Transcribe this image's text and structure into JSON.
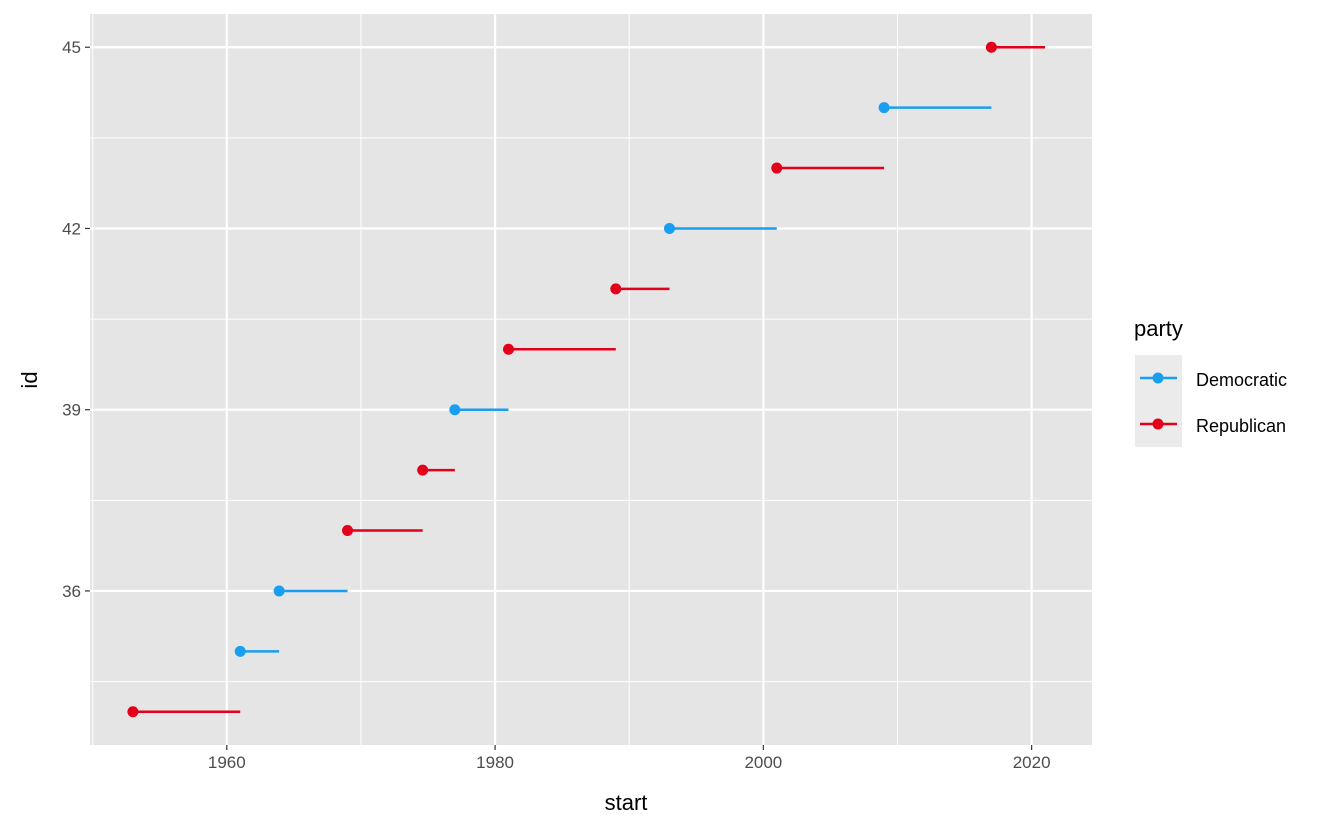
{
  "chart_data": {
    "type": "line",
    "title": "",
    "xlabel": "start",
    "ylabel": "id",
    "xlim": [
      1949.8,
      2024.5
    ],
    "ylim": [
      33.45,
      45.55
    ],
    "x_ticks": [
      1960,
      1980,
      2000,
      2020
    ],
    "x_tick_labels": [
      "1960",
      "1980",
      "2000",
      "2020"
    ],
    "y_ticks": [
      36,
      39,
      42,
      45
    ],
    "y_tick_labels": [
      "36",
      "39",
      "42",
      "45"
    ],
    "grid": true,
    "legend": {
      "title": "party",
      "position": "right",
      "entries": [
        "Democratic",
        "Republican"
      ]
    },
    "colors": {
      "Democratic": "#1a9ff0",
      "Republican": "#e2001a"
    },
    "segments": [
      {
        "id": 34,
        "start": 1953,
        "end": 1961,
        "party": "Republican"
      },
      {
        "id": 35,
        "start": 1961,
        "end": 1963.9,
        "party": "Democratic"
      },
      {
        "id": 36,
        "start": 1963.9,
        "end": 1969,
        "party": "Democratic"
      },
      {
        "id": 37,
        "start": 1969,
        "end": 1974.6,
        "party": "Republican"
      },
      {
        "id": 38,
        "start": 1974.6,
        "end": 1977,
        "party": "Republican"
      },
      {
        "id": 39,
        "start": 1977,
        "end": 1981,
        "party": "Democratic"
      },
      {
        "id": 40,
        "start": 1981,
        "end": 1989,
        "party": "Republican"
      },
      {
        "id": 41,
        "start": 1989,
        "end": 1993,
        "party": "Republican"
      },
      {
        "id": 42,
        "start": 1993,
        "end": 2001,
        "party": "Democratic"
      },
      {
        "id": 43,
        "start": 2001,
        "end": 2009,
        "party": "Republican"
      },
      {
        "id": 44,
        "start": 2009,
        "end": 2017,
        "party": "Democratic"
      },
      {
        "id": 45,
        "start": 2017,
        "end": 2021,
        "party": "Republican"
      }
    ]
  }
}
